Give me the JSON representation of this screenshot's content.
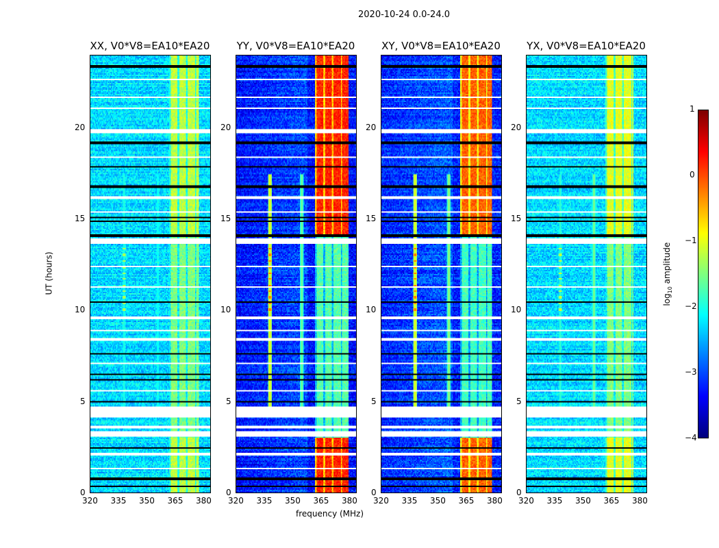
{
  "chart_data": {
    "type": "heatmap",
    "suptitle": "2020-10-24 0.0-24.0",
    "xlabel": "frequency (MHz)",
    "ylabel": "UT (hours)",
    "xlim": [
      320,
      384
    ],
    "ylim": [
      0,
      24
    ],
    "xticks": [
      "320",
      "335",
      "350",
      "365",
      "380"
    ],
    "xtick_values": [
      320,
      335,
      350,
      365,
      380
    ],
    "yticks": [
      "0",
      "5",
      "10",
      "15",
      "20"
    ],
    "ytick_values": [
      0,
      5,
      10,
      15,
      20
    ],
    "colorbar": {
      "label_prefix": "log",
      "label_sub": "10",
      "label_suffix": " amplitude",
      "range": [
        -4,
        1
      ],
      "ticks": [
        "1",
        "0",
        "−1",
        "−2",
        "−3",
        "−4"
      ],
      "tick_values": [
        1,
        0,
        -1,
        -2,
        -3,
        -4
      ],
      "colormap": "jet"
    },
    "panels": [
      {
        "title": "XX, V0*V8=EA10*EA20",
        "background": -2.3,
        "band": [
          362,
          378
        ],
        "band_level_high": -1.2,
        "band_level_low": -1.5,
        "lines": [
          {
            "freq": 338,
            "level": -1.8
          },
          {
            "freq": 356,
            "level": -1.9
          }
        ]
      },
      {
        "title": "YY, V0*V8=EA10*EA20",
        "background": -3.3,
        "band": [
          362,
          380
        ],
        "band_level_high": 0.2,
        "band_level_low": -1.7,
        "lines": [
          {
            "freq": 338,
            "level": -0.8
          },
          {
            "freq": 355,
            "level": -1.4
          }
        ]
      },
      {
        "title": "XY, V0*V8=EA10*EA20",
        "background": -3.2,
        "band": [
          362,
          379
        ],
        "band_level_high": -0.1,
        "band_level_low": -1.8,
        "lines": [
          {
            "freq": 338,
            "level": -0.8
          },
          {
            "freq": 356,
            "level": -1.3
          }
        ]
      },
      {
        "title": "YX, V0*V8=EA10*EA20",
        "background": -2.3,
        "band": [
          362,
          377
        ],
        "band_level_high": -1.0,
        "band_level_low": -1.5,
        "lines": [
          {
            "freq": 338,
            "level": -1.7
          },
          {
            "freq": 356,
            "level": -1.4
          }
        ]
      }
    ],
    "flagged_hours": [
      [
        3.1,
        3.35
      ],
      [
        4.1,
        4.7
      ],
      [
        13.65,
        13.95
      ],
      [
        19.72,
        19.95
      ]
    ]
  }
}
